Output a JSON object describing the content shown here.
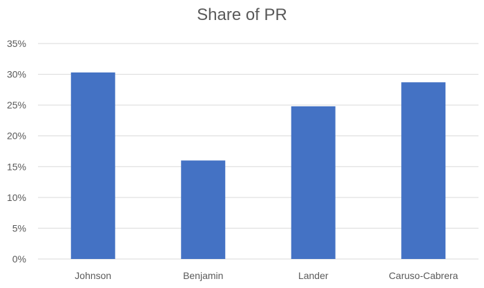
{
  "chart_data": {
    "type": "bar",
    "title": "Share of PR",
    "xlabel": "",
    "ylabel": "",
    "categories": [
      "Johnson",
      "Benjamin",
      "Lander",
      "Caruso-Cabrera"
    ],
    "values": [
      0.303,
      0.16,
      0.248,
      0.287
    ],
    "ylim": [
      0,
      0.35
    ],
    "y_ticks": [
      "0%",
      "5%",
      "10%",
      "15%",
      "20%",
      "25%",
      "30%",
      "35%"
    ],
    "y_tick_values": [
      0,
      0.05,
      0.1,
      0.15,
      0.2,
      0.25,
      0.3,
      0.35
    ],
    "grid": true,
    "legend": "none",
    "bar_color": "#4472C4",
    "grid_color": "#D9D9D9"
  }
}
